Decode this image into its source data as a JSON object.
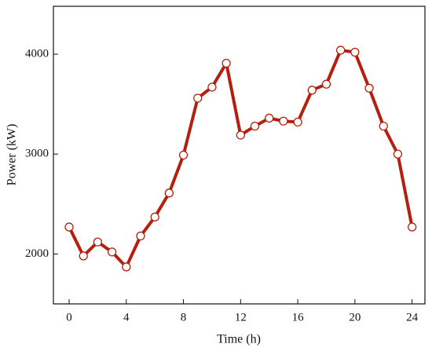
{
  "chart_data": {
    "type": "line",
    "x_label": "Time (h)",
    "y_label": "Power (kW)",
    "x": [
      0,
      1,
      2,
      3,
      4,
      5,
      6,
      7,
      8,
      9,
      10,
      11,
      12,
      13,
      14,
      15,
      16,
      17,
      18,
      19,
      20,
      21,
      22,
      23,
      24
    ],
    "series": [
      {
        "color": "#b3200f",
        "values": [
          2270,
          1980,
          2120,
          2020,
          1870,
          2180,
          2370,
          2610,
          2990,
          3560,
          3670,
          3910,
          3190,
          3280,
          3360,
          3330,
          3320,
          3640,
          3700,
          4040,
          4020,
          3660,
          3280,
          3000,
          2270
        ]
      }
    ],
    "xlim": [
      -1.1,
      24.9
    ],
    "xticks": [
      0,
      4,
      8,
      12,
      16,
      20,
      24
    ],
    "ylim": [
      1500,
      4480
    ],
    "yticks": [
      2000,
      3000,
      4000
    ]
  }
}
